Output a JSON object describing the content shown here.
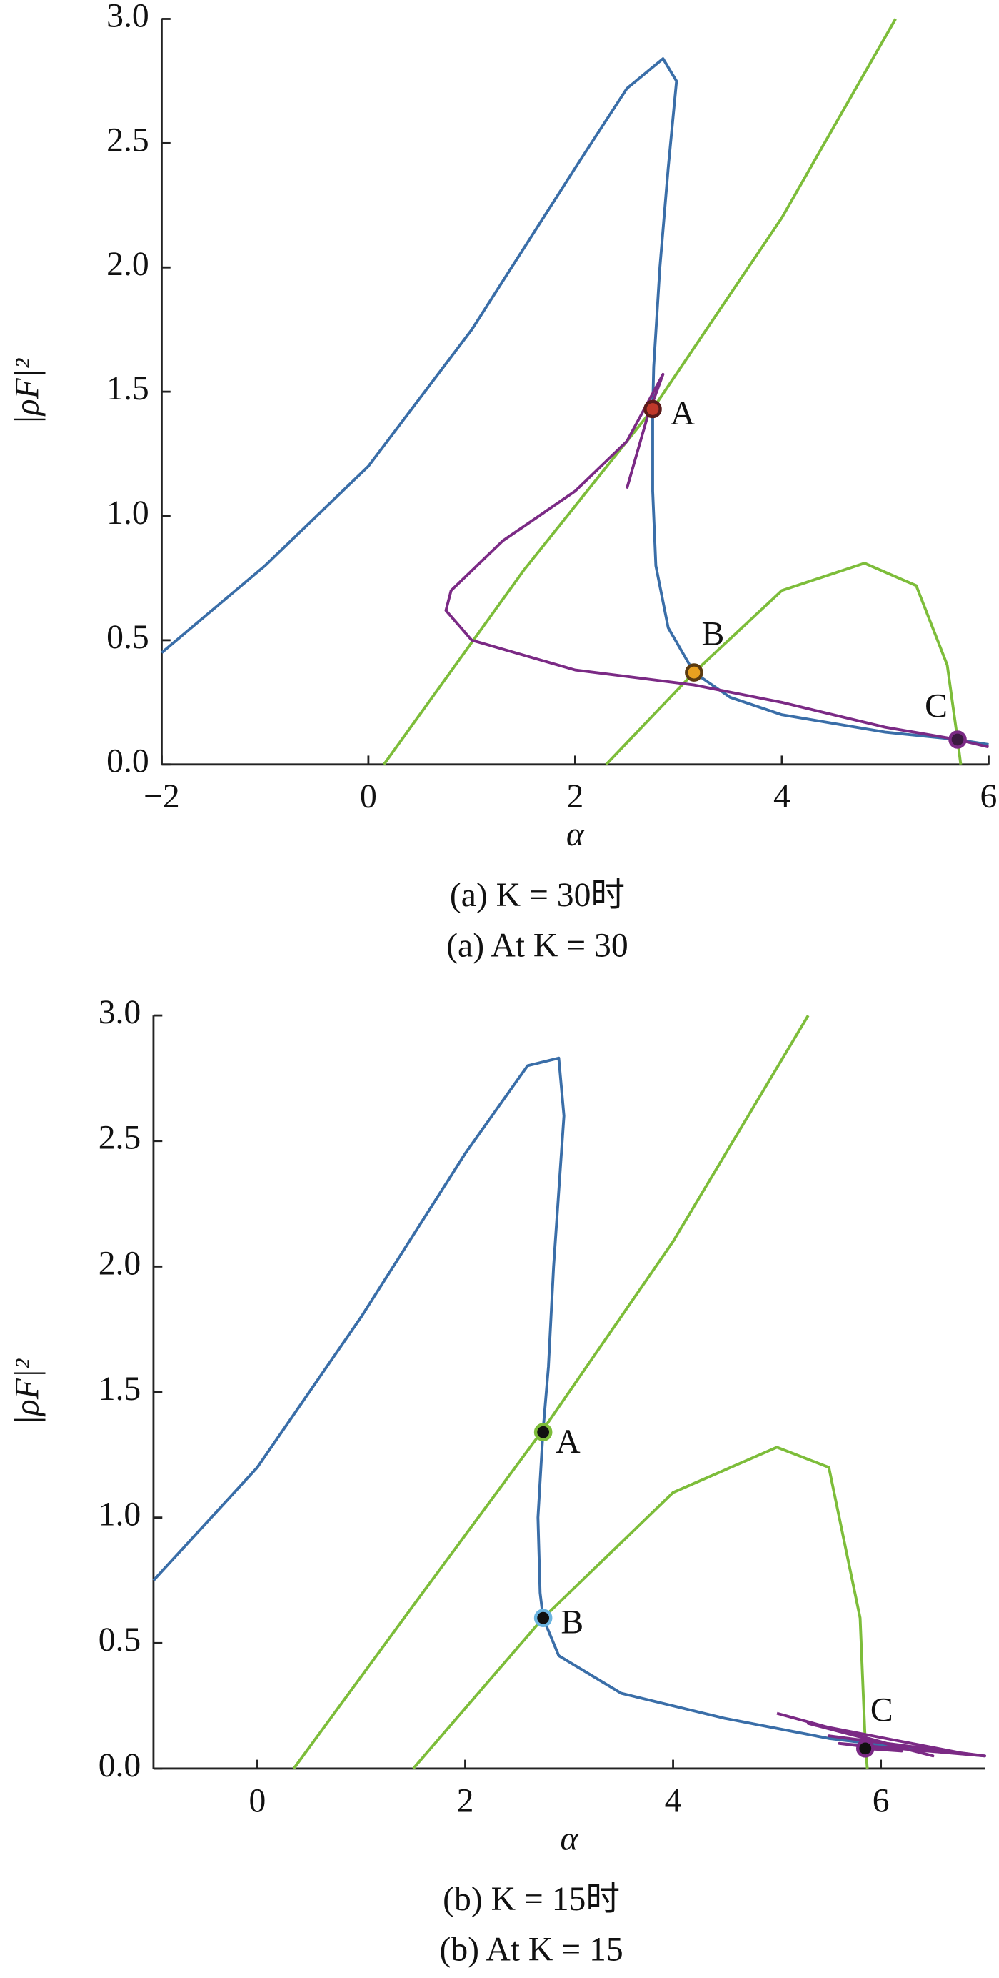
{
  "chart_data": [
    {
      "type": "line",
      "xlabel": "α",
      "ylabel": "|ρF|²",
      "captions": [
        "(a) K = 30时",
        "(a) At K = 30"
      ],
      "xlim": [
        -2,
        6
      ],
      "ylim": [
        0,
        3
      ],
      "xticks": [
        {
          "value": -2,
          "label": "−2"
        },
        0,
        2,
        4,
        6
      ],
      "yticks": [
        {
          "value": 0,
          "label": "0.0"
        },
        0.5,
        {
          "value": 1,
          "label": "1.0"
        },
        1.5,
        {
          "value": 2,
          "label": "2.0"
        },
        2.5,
        {
          "value": 3,
          "label": "3.0"
        }
      ],
      "series": [
        {
          "color": "#3a6ea8",
          "x": [
            -2,
            -1,
            0,
            1,
            2,
            2.5,
            2.85,
            2.98,
            2.9,
            2.82,
            2.76,
            2.75,
            2.75,
            2.78,
            2.9,
            3.15,
            3.5,
            4,
            5,
            5.7,
            6
          ],
          "values": [
            0.45,
            0.8,
            1.2,
            1.75,
            2.4,
            2.72,
            2.84,
            2.75,
            2.4,
            2.0,
            1.6,
            1.43,
            1.1,
            0.8,
            0.55,
            0.37,
            0.27,
            0.2,
            0.13,
            0.1,
            0.08
          ]
        },
        {
          "color": "#7dbd3a",
          "x": [
            0.15,
            1.5,
            2.75,
            4,
            5.1
          ],
          "values": [
            0,
            0.78,
            1.43,
            2.2,
            3.0
          ]
        },
        {
          "color": "#7dbd3a",
          "x": [
            2.3,
            3.15,
            4,
            4.8,
            5.3,
            5.6,
            5.7,
            5.73
          ],
          "values": [
            0,
            0.37,
            0.7,
            0.81,
            0.72,
            0.4,
            0.1,
            0
          ]
        },
        {
          "color": "#7b2a85",
          "x": [
            2.5,
            2.7,
            2.85,
            2.5,
            2,
            1.3,
            0.8,
            0.75,
            1,
            2,
            3.15,
            4,
            5,
            5.7,
            6
          ],
          "values": [
            1.11,
            1.4,
            1.57,
            1.3,
            1.1,
            0.9,
            0.7,
            0.62,
            0.5,
            0.38,
            0.32,
            0.25,
            0.15,
            0.1,
            0.07
          ]
        }
      ],
      "points": [
        {
          "label": "A",
          "x": 2.75,
          "y": 1.43,
          "fill": "#c0392b",
          "edge": "#5a1a1a"
        },
        {
          "label": "B",
          "x": 3.15,
          "y": 0.37,
          "fill": "#e8a020",
          "edge": "#5a3a10"
        },
        {
          "label": "C",
          "x": 5.7,
          "y": 0.1,
          "fill": "#3a1a40",
          "edge": "#7b2a85"
        }
      ]
    },
    {
      "type": "line",
      "xlabel": "α",
      "ylabel": "|ρF|²",
      "captions": [
        "(b) K = 15时",
        "(b) At K = 15"
      ],
      "xlim": [
        -1,
        7
      ],
      "ylim": [
        0,
        3
      ],
      "xticks": [
        0,
        2,
        4,
        6
      ],
      "yticks": [
        {
          "value": 0,
          "label": "0.0"
        },
        0.5,
        {
          "value": 1,
          "label": "1.0"
        },
        1.5,
        {
          "value": 2,
          "label": "2.0"
        },
        2.5,
        {
          "value": 3,
          "label": "3.0"
        }
      ],
      "series": [
        {
          "color": "#3a6ea8",
          "x": [
            -1,
            0,
            1,
            2,
            2.6,
            2.9,
            2.95,
            2.85,
            2.8,
            2.75,
            2.7,
            2.72,
            2.75,
            2.9,
            3.5,
            4.5,
            5.5,
            6.5,
            7
          ],
          "values": [
            0.75,
            1.2,
            1.8,
            2.45,
            2.8,
            2.83,
            2.6,
            2.0,
            1.6,
            1.35,
            1.0,
            0.7,
            0.6,
            0.45,
            0.3,
            0.2,
            0.12,
            0.07,
            0.05
          ]
        },
        {
          "color": "#7dbd3a",
          "x": [
            0.35,
            1.5,
            2.75,
            4,
            5.3
          ],
          "values": [
            0,
            0.65,
            1.35,
            2.1,
            3.0
          ]
        },
        {
          "color": "#7dbd3a",
          "x": [
            1.5,
            2.75,
            4,
            5,
            5.5,
            5.8,
            5.85,
            5.87
          ],
          "values": [
            0,
            0.6,
            1.1,
            1.28,
            1.2,
            0.6,
            0.1,
            0
          ]
        },
        {
          "color": "#7b2a85",
          "x": [
            5,
            6.5,
            5.3,
            6.8,
            5.5,
            7,
            5.6,
            6.2,
            5.85
          ],
          "values": [
            0.22,
            0.05,
            0.18,
            0.06,
            0.13,
            0.05,
            0.1,
            0.07,
            0.08
          ]
        }
      ],
      "points": [
        {
          "label": "A",
          "x": 2.75,
          "y": 1.34,
          "fill": "#111111",
          "edge": "#7dbd3a"
        },
        {
          "label": "B",
          "x": 2.75,
          "y": 0.6,
          "fill": "#111111",
          "edge": "#6ab4e0"
        },
        {
          "label": "C",
          "x": 5.85,
          "y": 0.08,
          "fill": "#111111",
          "edge": "#7b2a85"
        }
      ]
    }
  ]
}
